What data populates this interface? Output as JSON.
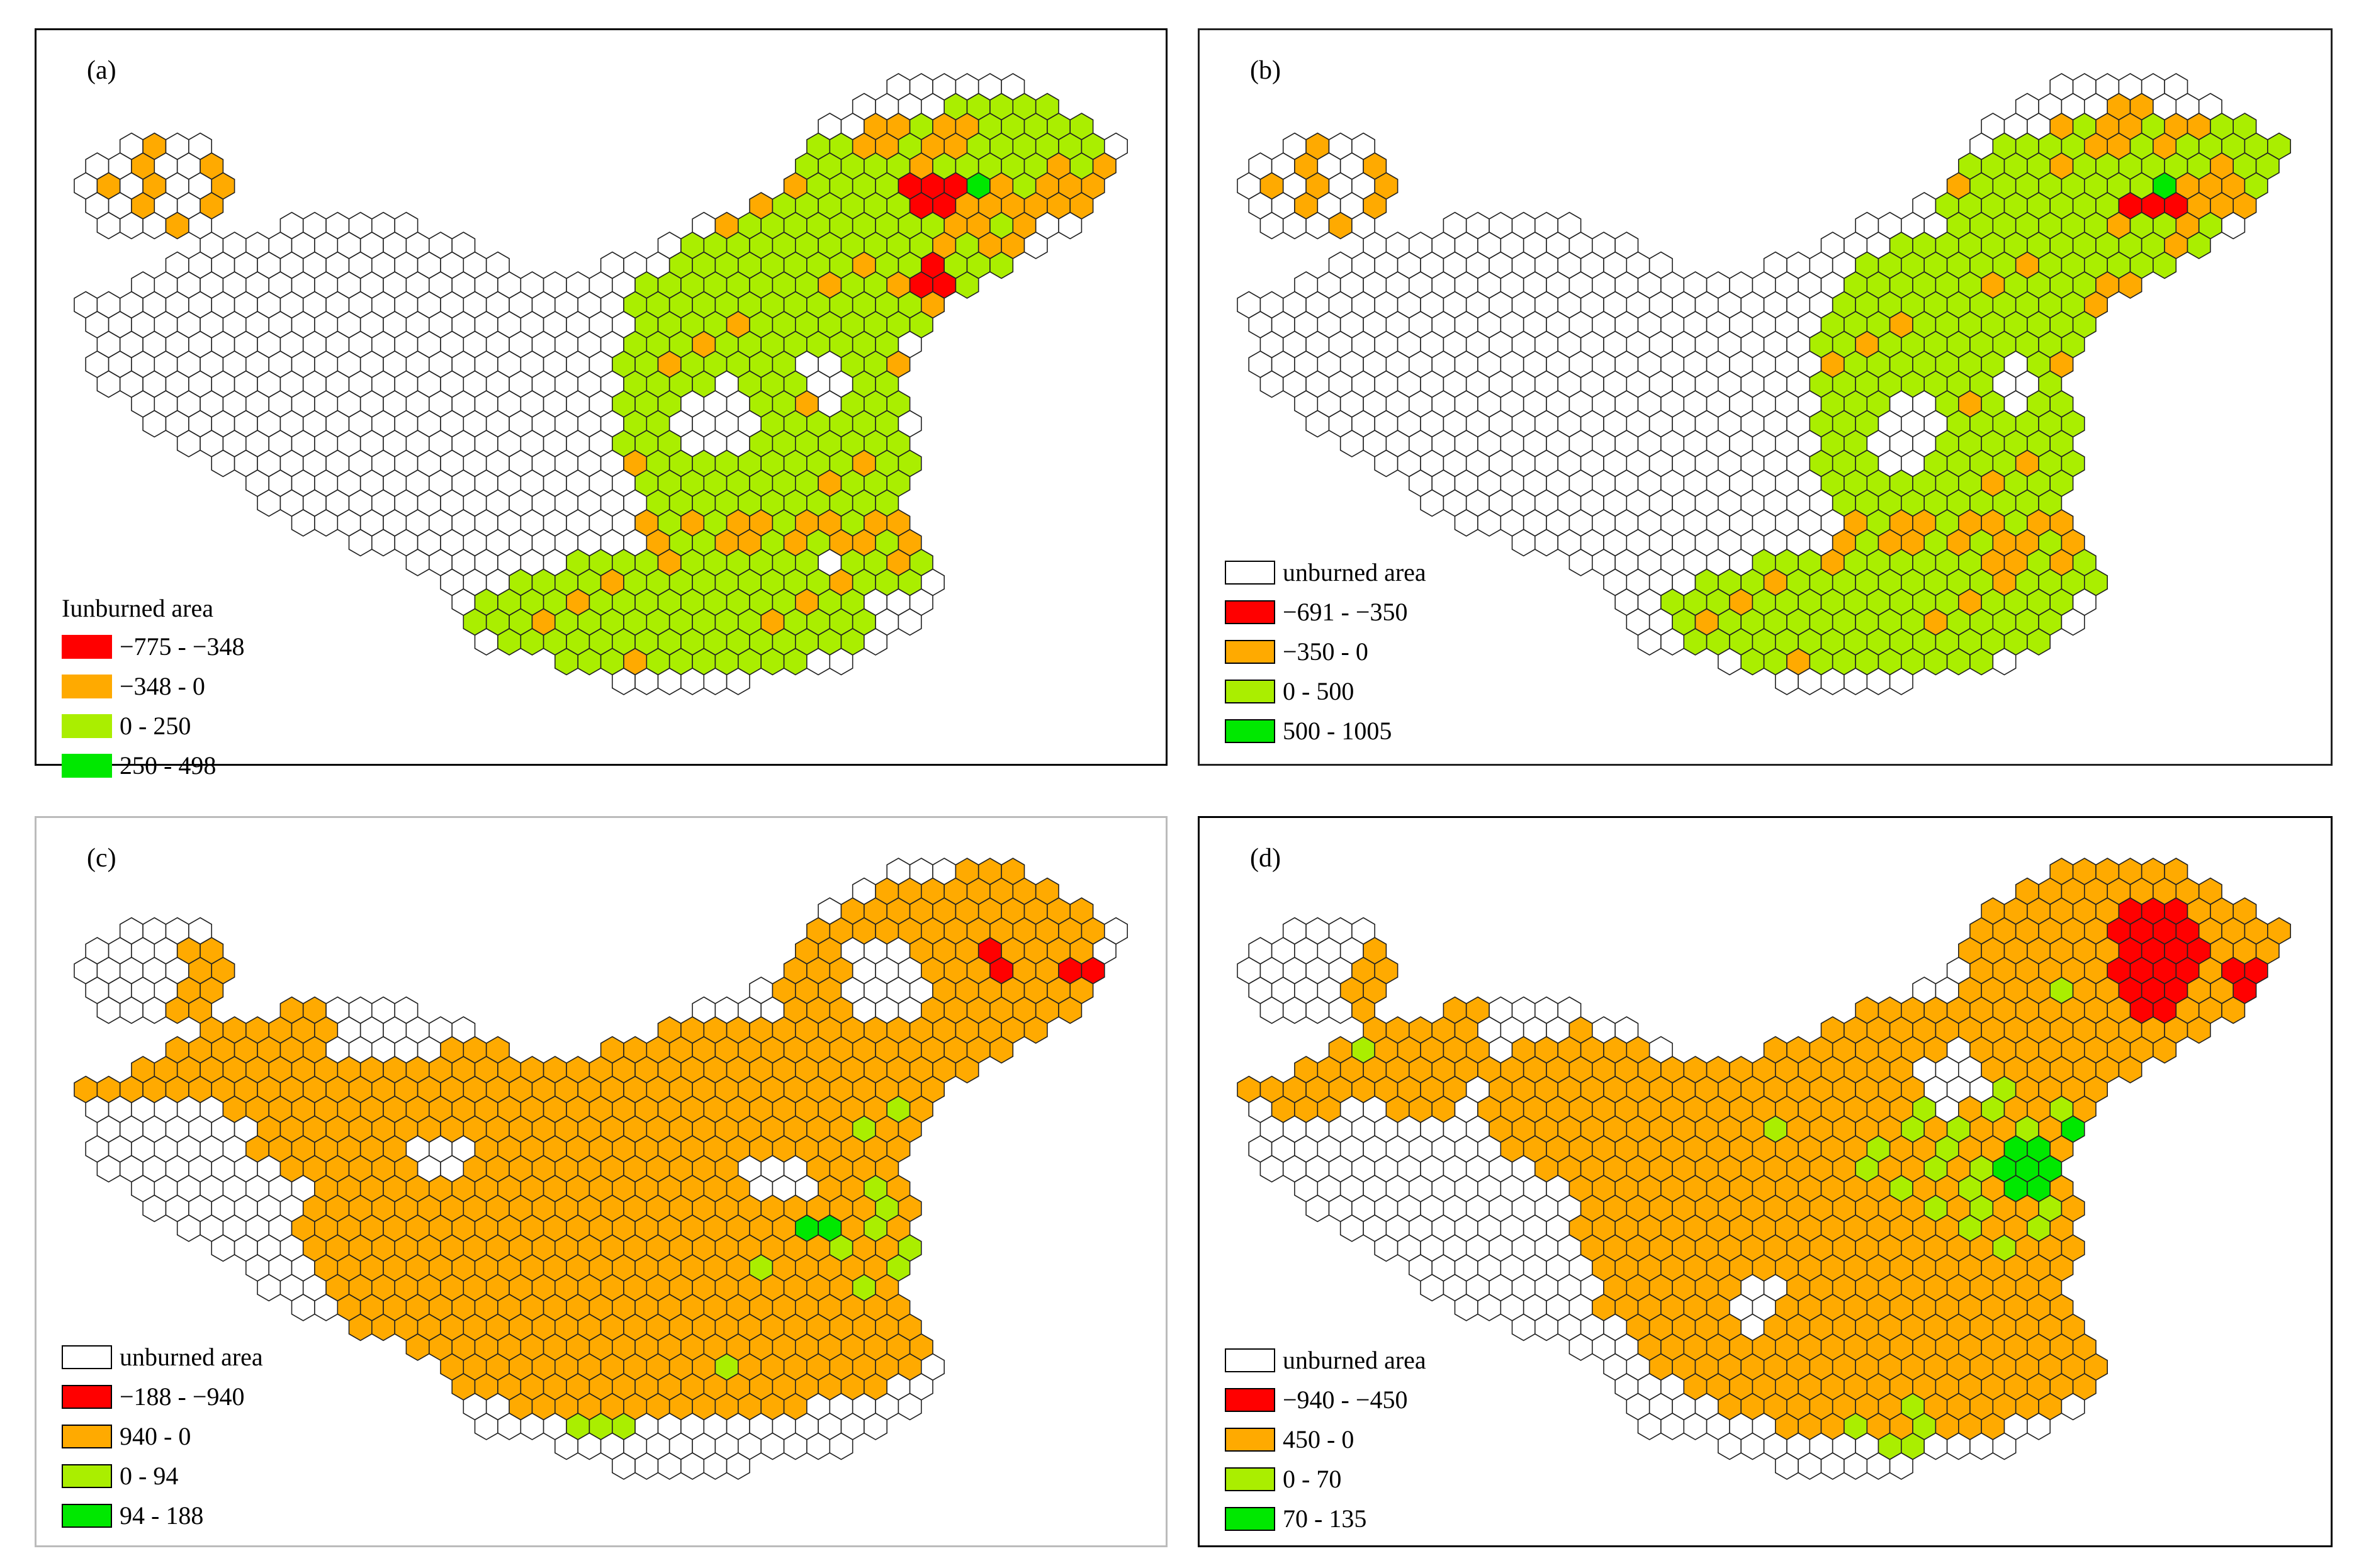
{
  "colors": {
    "unburned": "#ffffff",
    "strong_negative": "#ff0000",
    "negative": "#ffaa00",
    "positive": "#aaee00",
    "strong_positive": "#00e800",
    "hex_stroke": "#222222"
  },
  "panels": [
    {
      "label": "(a)",
      "legend": {
        "title": "Iunburned area",
        "items": [
          {
            "text": "−775 - −348",
            "class": "strong_negative"
          },
          {
            "text": "−348 - 0",
            "class": "negative"
          },
          {
            "text": "0 - 250",
            "class": "positive"
          },
          {
            "text": "250 - 498",
            "class": "strong_positive"
          }
        ]
      }
    },
    {
      "label": "(b)",
      "legend": {
        "title": "unburned area",
        "items": [
          {
            "text": "−691 - −350",
            "class": "strong_negative"
          },
          {
            "text": "−350 - 0",
            "class": "negative"
          },
          {
            "text": "0 - 500",
            "class": "positive"
          },
          {
            "text": "500 - 1005",
            "class": "strong_positive"
          }
        ]
      }
    },
    {
      "label": "(c)",
      "legend": {
        "title": "unburned area",
        "items": [
          {
            "text": "−188 - −940",
            "class": "strong_negative"
          },
          {
            "text": "940 - 0",
            "class": "negative"
          },
          {
            "text": "0 - 94",
            "class": "positive"
          },
          {
            "text": "94 - 188",
            "class": "strong_positive"
          }
        ]
      }
    },
    {
      "label": "(d)",
      "legend": {
        "title": "unburned area",
        "items": [
          {
            "text": "−940 - −450",
            "class": "strong_negative"
          },
          {
            "text": "450 - 0",
            "class": "negative"
          },
          {
            "text": "0 - 70",
            "class": "positive"
          },
          {
            "text": "70 - 135",
            "class": "strong_positive"
          }
        ]
      }
    }
  ]
}
